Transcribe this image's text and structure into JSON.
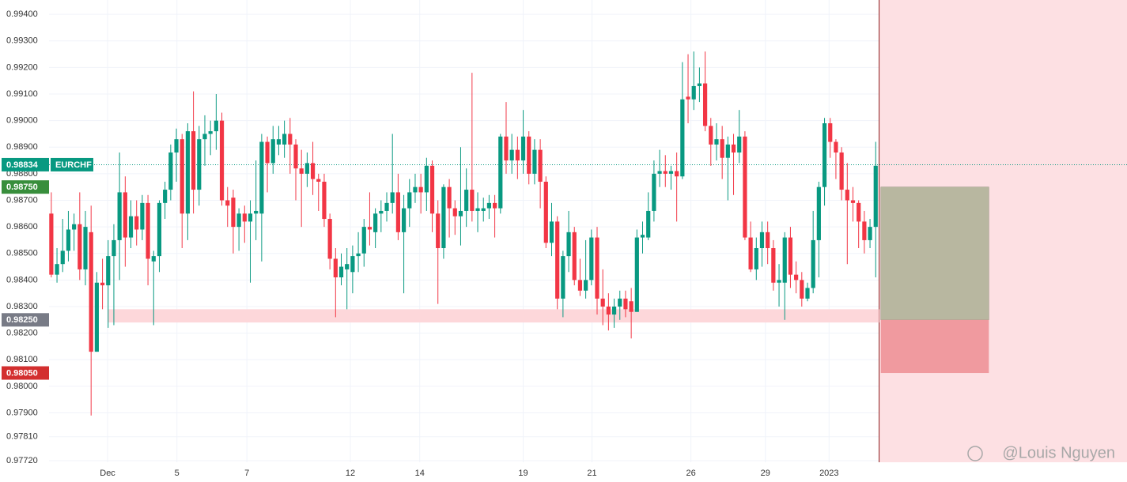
{
  "chart_data": {
    "type": "candlestick",
    "symbol": "EURCHF",
    "up_color": "#089981",
    "down_color": "#f23645",
    "grid": true,
    "open": [
      0.9865,
      0.9842,
      0.9846,
      0.9851,
      0.9859,
      0.9861,
      0.9844,
      0.9858,
      0.9813,
      0.9839,
      0.9838,
      0.9849,
      0.9855,
      0.9873,
      0.9856,
      0.9864,
      0.9859,
      0.9869,
      0.9847,
      0.9849,
      0.9869,
      0.9874,
      0.9888,
      0.9893,
      0.9865,
      0.9896,
      0.9874,
      0.9893,
      0.9895,
      0.9896,
      0.99,
      0.987,
      0.9871,
      0.986,
      0.9865,
      0.9862,
      0.9865,
      0.9865,
      0.9892,
      0.9884,
      0.9891,
      0.9891,
      0.9895,
      0.9891,
      0.9882,
      0.988,
      0.9884,
      0.9878,
      0.9877,
      0.9863,
      0.9848,
      0.9841,
      0.9844,
      0.9843,
      0.9849,
      0.985,
      0.986,
      0.9858,
      0.9865,
      0.9866,
      0.9869,
      0.9873,
      0.9858,
      0.9867,
      0.9873,
      0.9875,
      0.9873,
      0.9883,
      0.9865,
      0.9852,
      0.9875,
      0.9867,
      0.9864,
      0.9866,
      0.9874,
      0.9866,
      0.9866,
      0.9867,
      0.9869,
      0.9867,
      0.9894,
      0.9885,
      0.9889,
      0.9885,
      0.9894,
      0.988,
      0.9889,
      0.9877,
      0.9854,
      0.9862,
      0.9833,
      0.9849,
      0.9858,
      0.984,
      0.9836,
      0.984,
      0.9856,
      0.9833,
      0.983,
      0.9827,
      0.983,
      0.9833,
      0.9832,
      0.9828,
      0.9856,
      0.9856,
      0.9866,
      0.988,
      0.9881,
      0.988,
      0.9881,
      0.9879,
      0.9909,
      0.9908,
      0.9913,
      0.9914,
      0.9898,
      0.9891,
      0.9893,
      0.9886,
      0.9891,
      0.9888,
      0.9894,
      0.9856,
      0.9844,
      0.9852,
      0.9858,
      0.9852,
      0.9839,
      0.9839,
      0.9856,
      0.9842,
      0.984,
      0.9833,
      0.9837,
      0.9855,
      0.9875,
      0.9899,
      0.9892,
      0.9888,
      0.9874,
      0.987,
      0.9869,
      0.9862,
      0.9855,
      0.986
    ],
    "high": [
      0.9873,
      0.9852,
      0.9863,
      0.9866,
      0.9865,
      0.9873,
      0.9866,
      0.9868,
      0.9843,
      0.9848,
      0.9855,
      0.9861,
      0.9888,
      0.9879,
      0.987,
      0.987,
      0.9872,
      0.9872,
      0.9851,
      0.987,
      0.9877,
      0.9891,
      0.9897,
      0.9895,
      0.9899,
      0.9911,
      0.9898,
      0.9902,
      0.99,
      0.991,
      0.9903,
      0.9875,
      0.9874,
      0.9867,
      0.9868,
      0.987,
      0.9885,
      0.9895,
      0.9894,
      0.9898,
      0.9898,
      0.99,
      0.9901,
      0.9893,
      0.9889,
      0.9888,
      0.9892,
      0.988,
      0.988,
      0.9865,
      0.9852,
      0.985,
      0.9852,
      0.9853,
      0.9858,
      0.9863,
      0.9873,
      0.9867,
      0.987,
      0.9873,
      0.9895,
      0.988,
      0.9872,
      0.9878,
      0.988,
      0.988,
      0.9886,
      0.9885,
      0.987,
      0.9876,
      0.9878,
      0.987,
      0.989,
      0.9882,
      0.9918,
      0.9873,
      0.9871,
      0.9872,
      0.9872,
      0.9895,
      0.9907,
      0.9895,
      0.9894,
      0.9904,
      0.9896,
      0.9893,
      0.9893,
      0.9879,
      0.9869,
      0.9864,
      0.9851,
      0.9866,
      0.986,
      0.9848,
      0.9855,
      0.9859,
      0.986,
      0.9844,
      0.9835,
      0.9833,
      0.9836,
      0.9836,
      0.9837,
      0.9859,
      0.9862,
      0.9873,
      0.9885,
      0.9889,
      0.9887,
      0.9883,
      0.9888,
      0.9922,
      0.9925,
      0.9926,
      0.992,
      0.9926,
      0.9901,
      0.9899,
      0.9898,
      0.9894,
      0.9895,
      0.9904,
      0.9896,
      0.9862,
      0.9856,
      0.9862,
      0.9862,
      0.9855,
      0.9846,
      0.9858,
      0.986,
      0.9847,
      0.9843,
      0.9839,
      0.9866,
      0.9877,
      0.9901,
      0.9901,
      0.9893,
      0.989,
      0.9884,
      0.9875,
      0.987,
      0.9866,
      0.9863,
      0.9892
    ],
    "low": [
      0.9841,
      0.9839,
      0.9843,
      0.9847,
      0.9851,
      0.984,
      0.9838,
      0.9789,
      0.9813,
      0.9829,
      0.9822,
      0.9823,
      0.984,
      0.9845,
      0.9852,
      0.9853,
      0.9855,
      0.9838,
      0.9823,
      0.9843,
      0.9863,
      0.987,
      0.9877,
      0.9852,
      0.9855,
      0.9865,
      0.9868,
      0.9883,
      0.9887,
      0.9889,
      0.9868,
      0.986,
      0.985,
      0.9851,
      0.9854,
      0.9839,
      0.9855,
      0.9847,
      0.9873,
      0.988,
      0.9887,
      0.9886,
      0.988,
      0.987,
      0.986,
      0.9875,
      0.9872,
      0.9866,
      0.986,
      0.9844,
      0.9826,
      0.9838,
      0.9829,
      0.9835,
      0.9843,
      0.9845,
      0.9853,
      0.9852,
      0.9858,
      0.9862,
      0.9865,
      0.9855,
      0.9835,
      0.986,
      0.9869,
      0.9865,
      0.9866,
      0.9858,
      0.9831,
      0.9848,
      0.9856,
      0.9857,
      0.9853,
      0.986,
      0.9862,
      0.9858,
      0.9862,
      0.9863,
      0.9856,
      0.9865,
      0.988,
      0.988,
      0.9878,
      0.988,
      0.9876,
      0.9876,
      0.9867,
      0.9852,
      0.9849,
      0.9829,
      0.9826,
      0.9843,
      0.9838,
      0.9834,
      0.9833,
      0.9838,
      0.9827,
      0.9823,
      0.9821,
      0.9822,
      0.9825,
      0.9826,
      0.9818,
      0.9828,
      0.985,
      0.9855,
      0.9862,
      0.9875,
      0.9875,
      0.9874,
      0.9862,
      0.9878,
      0.9899,
      0.9904,
      0.9907,
      0.9896,
      0.9883,
      0.9885,
      0.9878,
      0.987,
      0.9872,
      0.9884,
      0.9855,
      0.9843,
      0.984,
      0.9845,
      0.9846,
      0.9836,
      0.983,
      0.9825,
      0.9837,
      0.9835,
      0.983,
      0.9832,
      0.9835,
      0.9841,
      0.9868,
      0.9886,
      0.9878,
      0.987,
      0.9846,
      0.9862,
      0.9852,
      0.985,
      0.9852,
      0.9841
    ],
    "close": [
      0.9842,
      0.9846,
      0.9851,
      0.9859,
      0.9861,
      0.9844,
      0.986,
      0.9813,
      0.9839,
      0.9838,
      0.9849,
      0.9855,
      0.9873,
      0.9856,
      0.9864,
      0.9859,
      0.9869,
      0.9848,
      0.9849,
      0.9869,
      0.9874,
      0.9888,
      0.9893,
      0.9865,
      0.9896,
      0.9874,
      0.9893,
      0.9895,
      0.9896,
      0.99,
      0.987,
      0.9868,
      0.986,
      0.9865,
      0.9862,
      0.9865,
      0.9866,
      0.9892,
      0.9884,
      0.9893,
      0.9893,
      0.9895,
      0.9891,
      0.9882,
      0.988,
      0.9884,
      0.9878,
      0.9877,
      0.9863,
      0.9848,
      0.9841,
      0.9845,
      0.9846,
      0.9849,
      0.985,
      0.986,
      0.9859,
      0.9865,
      0.9866,
      0.9869,
      0.9873,
      0.9858,
      0.9867,
      0.9873,
      0.9875,
      0.9873,
      0.9883,
      0.9865,
      0.9852,
      0.9875,
      0.9867,
      0.9864,
      0.9866,
      0.9874,
      0.9866,
      0.9867,
      0.9867,
      0.9869,
      0.9867,
      0.9894,
      0.9885,
      0.9889,
      0.9885,
      0.9894,
      0.988,
      0.9889,
      0.9877,
      0.9854,
      0.9862,
      0.9833,
      0.9849,
      0.9858,
      0.984,
      0.9836,
      0.984,
      0.9856,
      0.9833,
      0.983,
      0.9827,
      0.983,
      0.9833,
      0.9829,
      0.9828,
      0.9856,
      0.9857,
      0.9866,
      0.988,
      0.9881,
      0.988,
      0.9881,
      0.9879,
      0.9908,
      0.9908,
      0.9913,
      0.9914,
      0.9898,
      0.9891,
      0.9893,
      0.9886,
      0.9891,
      0.9888,
      0.9894,
      0.9856,
      0.9844,
      0.9852,
      0.9858,
      0.9852,
      0.9839,
      0.984,
      0.9856,
      0.9842,
      0.984,
      0.9833,
      0.9837,
      0.9855,
      0.9875,
      0.9899,
      0.9892,
      0.9888,
      0.9874,
      0.987,
      0.9869,
      0.9862,
      0.9855,
      0.986,
      0.9883
    ],
    "ylim": [
      0.97714,
      0.99454
    ],
    "yticks": [
      {
        "value": 0.994,
        "label": "0.99400"
      },
      {
        "value": 0.993,
        "label": "0.99300"
      },
      {
        "value": 0.992,
        "label": "0.99200"
      },
      {
        "value": 0.991,
        "label": "0.99100"
      },
      {
        "value": 0.99,
        "label": "0.99000"
      },
      {
        "value": 0.989,
        "label": "0.98900"
      },
      {
        "value": 0.988,
        "label": "0.98800"
      },
      {
        "value": 0.987,
        "label": "0.98700"
      },
      {
        "value": 0.986,
        "label": "0.98600"
      },
      {
        "value": 0.985,
        "label": "0.98500"
      },
      {
        "value": 0.984,
        "label": "0.98400"
      },
      {
        "value": 0.983,
        "label": "0.98300"
      },
      {
        "value": 0.982,
        "label": "0.98200"
      },
      {
        "value": 0.981,
        "label": "0.98100"
      },
      {
        "value": 0.98,
        "label": "0.98000"
      },
      {
        "value": 0.979,
        "label": "0.97900"
      },
      {
        "value": 0.9781,
        "label": "0.97810"
      },
      {
        "value": 0.9772,
        "label": "0.97720"
      }
    ],
    "xlim": [
      -0.4,
      189.2
    ],
    "xticks": [
      {
        "value": 9.9,
        "label": "Dec"
      },
      {
        "value": 22.1,
        "label": "5"
      },
      {
        "value": 34.4,
        "label": "7"
      },
      {
        "value": 52.6,
        "label": "12"
      },
      {
        "value": 64.8,
        "label": "14"
      },
      {
        "value": 83.0,
        "label": "19"
      },
      {
        "value": 95.1,
        "label": "21"
      },
      {
        "value": 112.5,
        "label": "26"
      },
      {
        "value": 125.6,
        "label": "29"
      },
      {
        "value": 136.8,
        "label": "2023"
      }
    ],
    "last_price": {
      "value": 0.98834,
      "label": "0.98834",
      "color": "#089981"
    },
    "levels": [
      {
        "value": 0.9875,
        "label": "0.98750",
        "color": "#388e3c"
      },
      {
        "value": 0.9825,
        "label": "0.98250",
        "color": "#787b86"
      },
      {
        "value": 0.9805,
        "label": "0.98050",
        "color": "#d32f2f"
      }
    ],
    "zone": {
      "low": 0.9824,
      "high": 0.9829,
      "start": 9.9,
      "color": "#fdd7da"
    },
    "watermark": "@Louis Nguyen"
  }
}
